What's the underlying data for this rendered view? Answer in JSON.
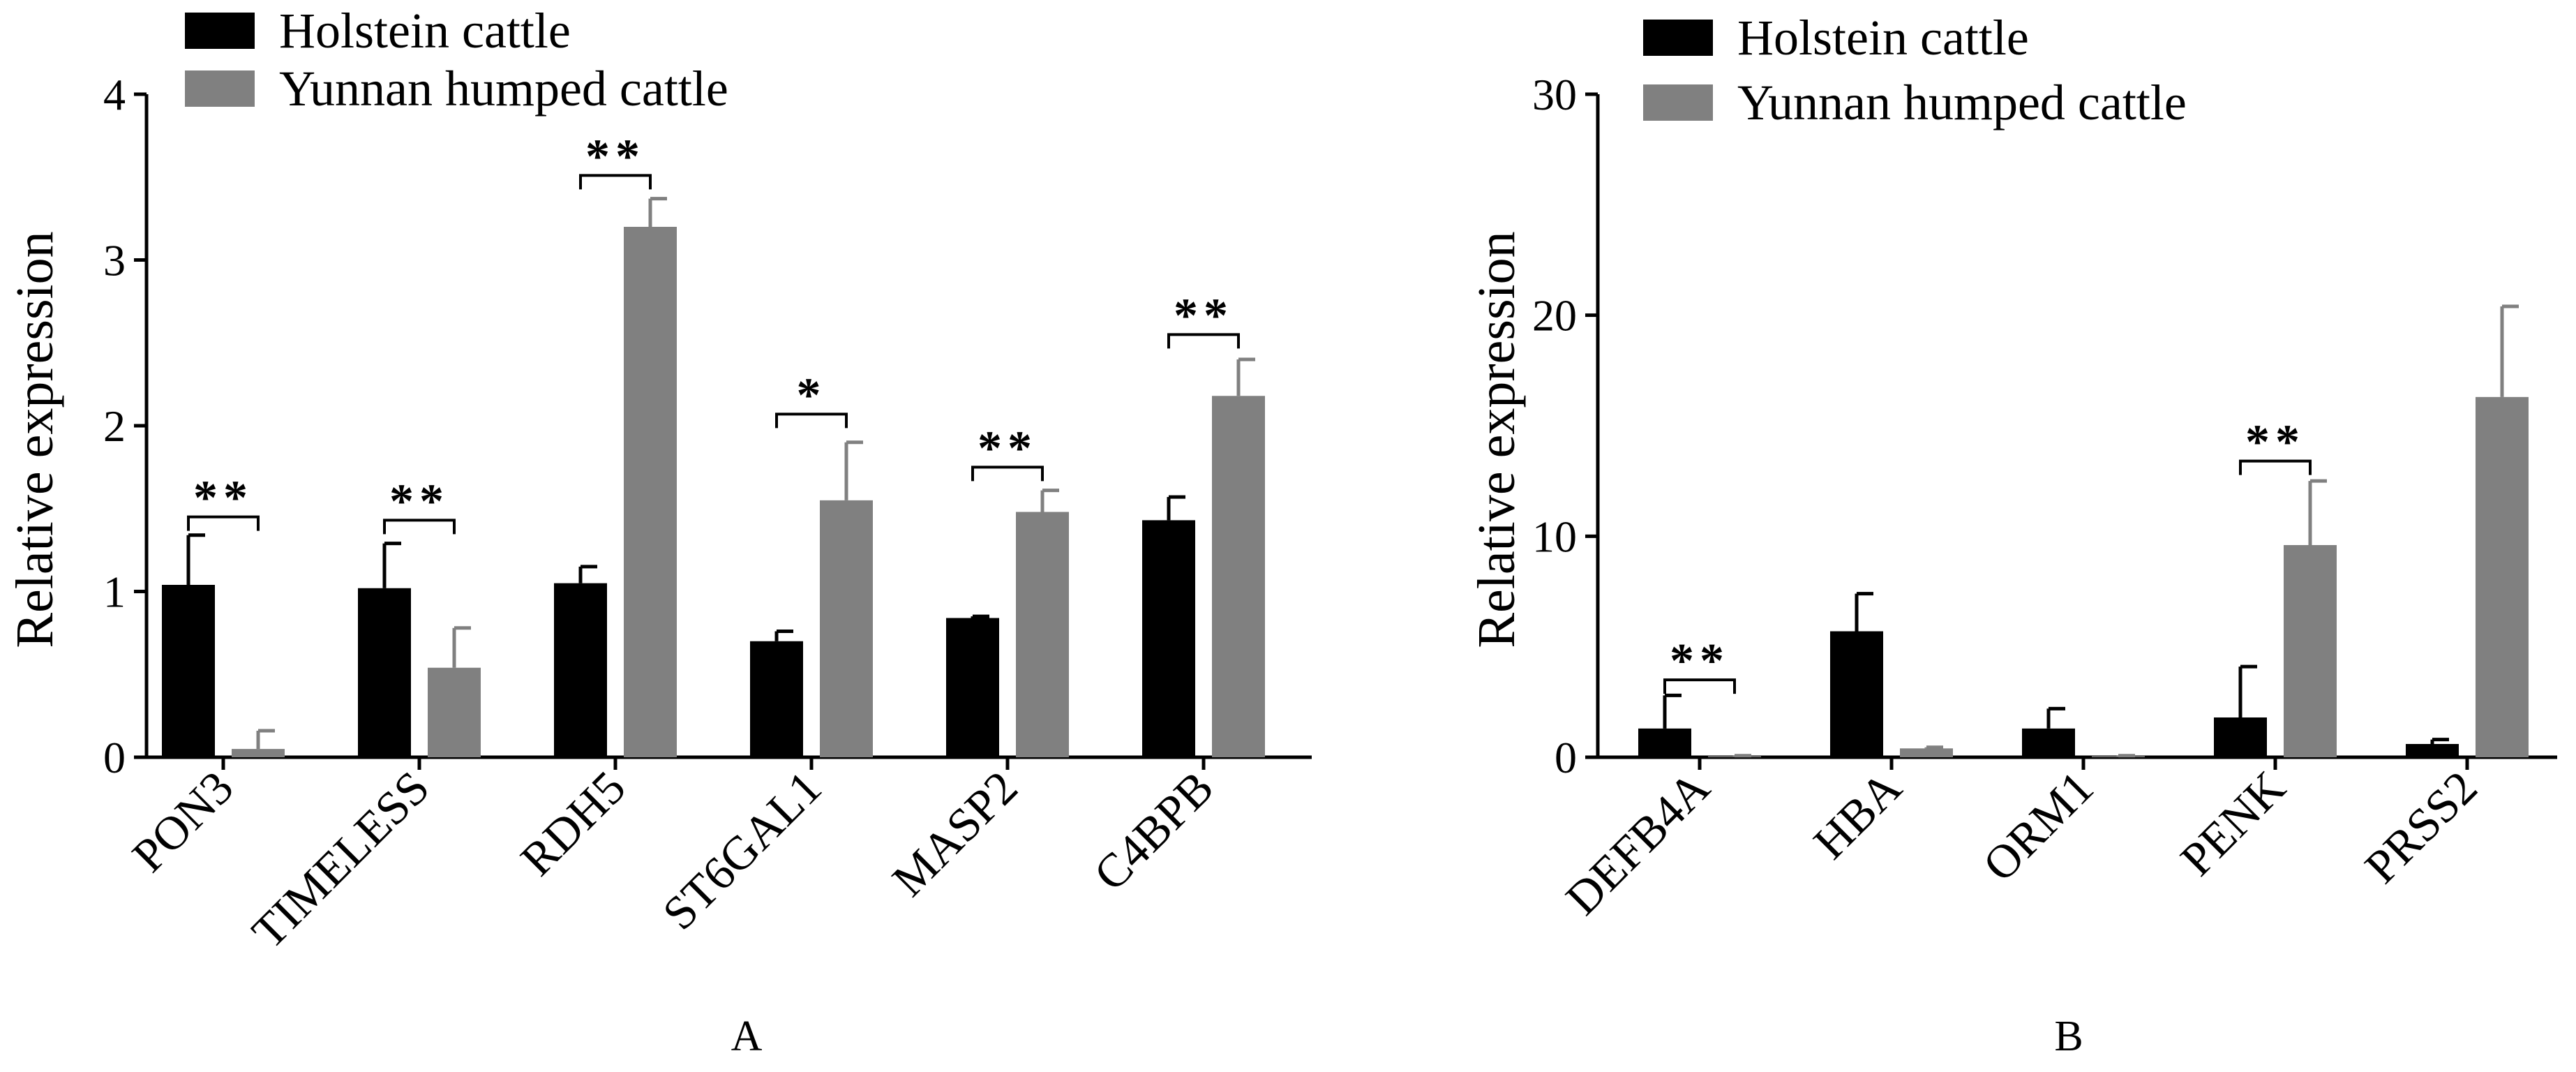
{
  "chart_data": [
    {
      "type": "bar",
      "panel_label": "A",
      "title": "",
      "xlabel": "",
      "ylabel": "Relative expression",
      "ylim": [
        0,
        4
      ],
      "yticks": [
        0,
        1,
        2,
        3,
        4
      ],
      "grid": false,
      "legend_position": "top-left",
      "categories": [
        "PON3",
        "TIMELESS",
        "RDH5",
        "ST6GAL1",
        "MASP2",
        "C4BPB"
      ],
      "series": [
        {
          "name": "Holstein cattle",
          "color": "#000000",
          "values": [
            1.04,
            1.02,
            1.05,
            0.7,
            0.84,
            1.43
          ],
          "errors": [
            0.3,
            0.27,
            0.1,
            0.06,
            0.01,
            0.14
          ]
        },
        {
          "name": "Yunnan humped cattle",
          "color": "#808080",
          "values": [
            0.05,
            0.54,
            3.2,
            1.55,
            1.48,
            2.18
          ],
          "errors": [
            0.11,
            0.24,
            0.17,
            0.35,
            0.13,
            0.22
          ]
        }
      ],
      "significance": [
        {
          "category": "PON3",
          "label": "**",
          "bracket_y": 1.45
        },
        {
          "category": "TIMELESS",
          "label": "**",
          "bracket_y": 1.43
        },
        {
          "category": "RDH5",
          "label": "**",
          "bracket_y": 3.51
        },
        {
          "category": "ST6GAL1",
          "label": "*",
          "bracket_y": 2.07
        },
        {
          "category": "MASP2",
          "label": "**",
          "bracket_y": 1.75
        },
        {
          "category": "C4BPB",
          "label": "**",
          "bracket_y": 2.55
        }
      ]
    },
    {
      "type": "bar",
      "panel_label": "B",
      "title": "",
      "xlabel": "",
      "ylabel": "Relative expression",
      "ylim": [
        0,
        30
      ],
      "yticks": [
        0,
        10,
        20,
        30
      ],
      "grid": false,
      "legend_position": "top-left",
      "categories": [
        "DEFB4A",
        "HBA",
        "ORM1",
        "PENK",
        "PRSS2"
      ],
      "series": [
        {
          "name": "Holstein cattle",
          "color": "#000000",
          "values": [
            1.3,
            5.7,
            1.3,
            1.8,
            0.6
          ],
          "errors": [
            1.5,
            1.7,
            0.9,
            2.3,
            0.2
          ]
        },
        {
          "name": "Yunnan humped cattle",
          "color": "#808080",
          "values": [
            0.05,
            0.4,
            0.05,
            9.6,
            16.3
          ],
          "errors": [
            0.02,
            0.05,
            0.02,
            2.9,
            4.1
          ]
        }
      ],
      "significance": [
        {
          "category": "DEFB4A",
          "label": "**",
          "bracket_y": 3.5
        },
        {
          "category": "PENK",
          "label": "**",
          "bracket_y": 13.4
        }
      ]
    }
  ]
}
